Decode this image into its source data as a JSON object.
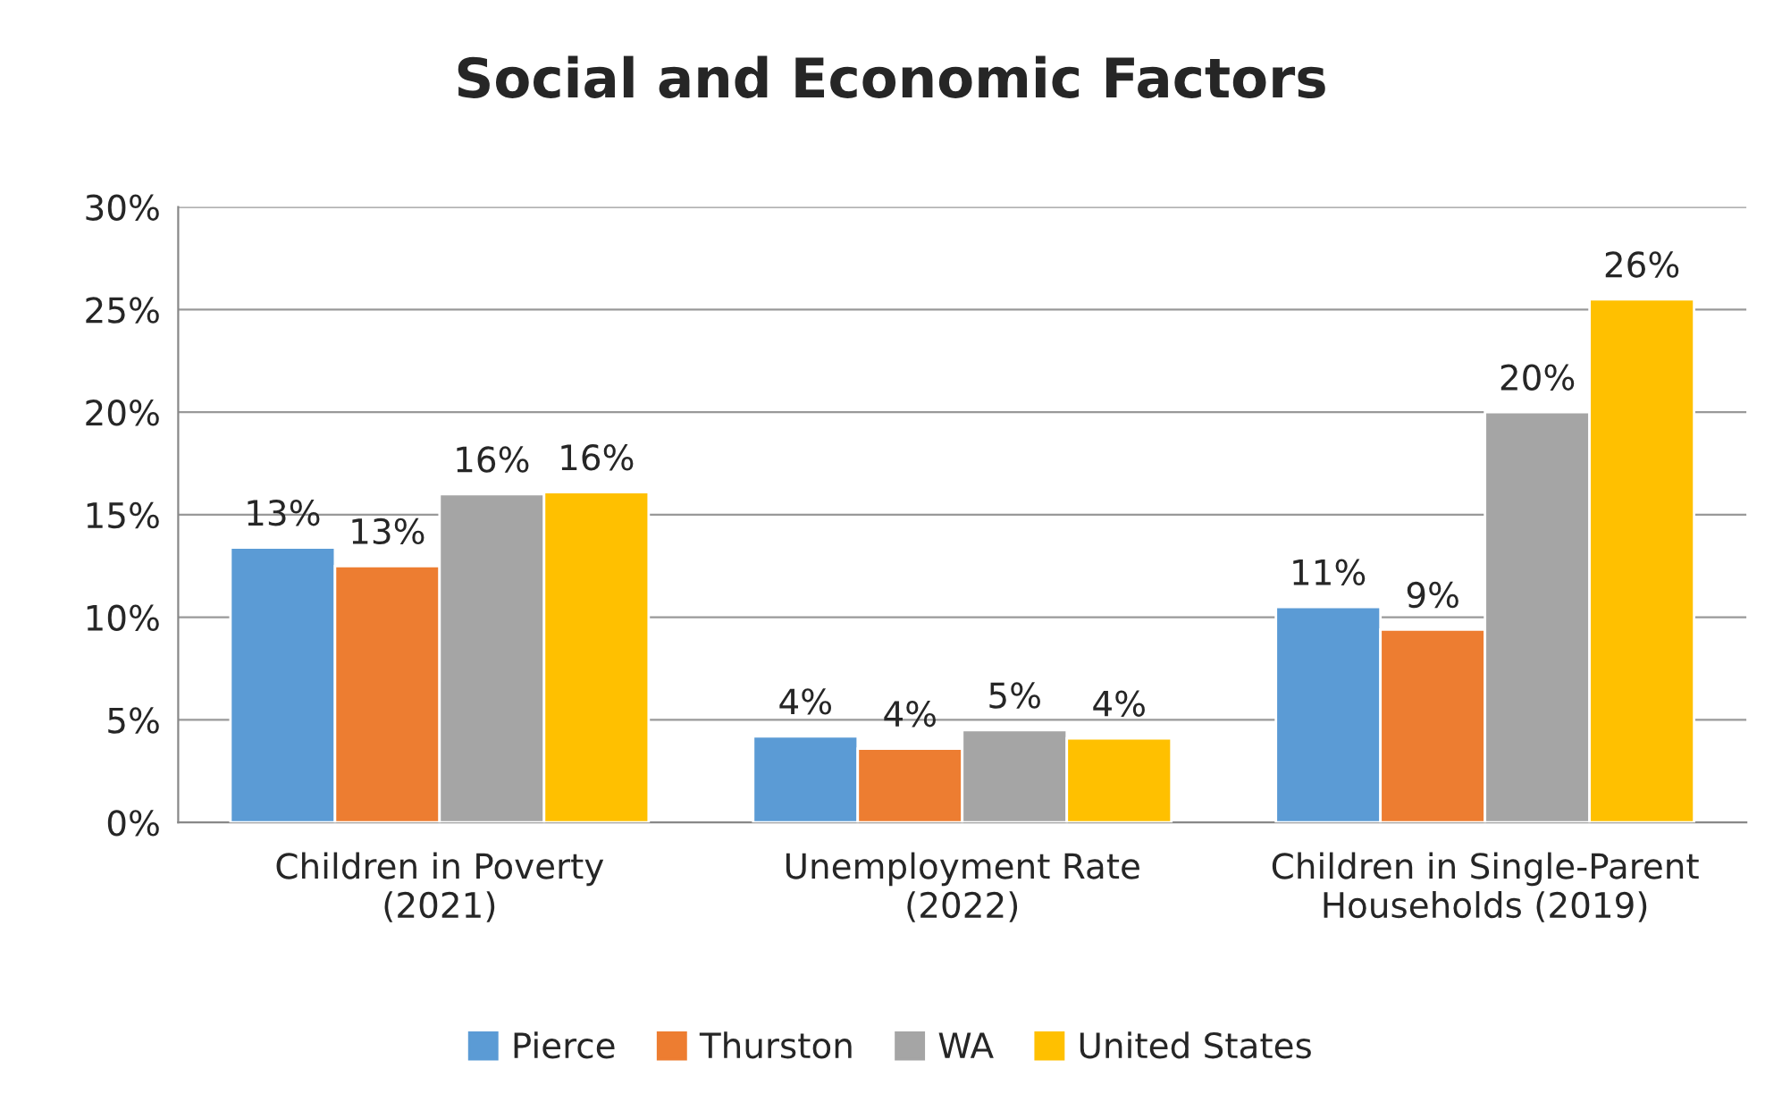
{
  "chart_data": {
    "type": "bar",
    "title": "Social and Economic Factors",
    "categories": [
      "Children in Poverty\n(2021)",
      "Unemployment Rate\n(2022)",
      "Children in Single-Parent\nHouseholds (2019)"
    ],
    "series": [
      {
        "name": "Pierce",
        "color": "#5b9bd5",
        "values": [
          13.4,
          4.2,
          10.5
        ],
        "value_labels": [
          "13%",
          "4%",
          "11%"
        ]
      },
      {
        "name": "Thurston",
        "color": "#ed7d31",
        "values": [
          12.5,
          3.6,
          9.4
        ],
        "value_labels": [
          "13%",
          "4%",
          "9%"
        ]
      },
      {
        "name": "WA",
        "color": "#a5a5a5",
        "values": [
          16.0,
          4.5,
          20.0
        ],
        "value_labels": [
          "16%",
          "5%",
          "20%"
        ]
      },
      {
        "name": "United States",
        "color": "#ffc000",
        "values": [
          16.1,
          4.1,
          25.5
        ],
        "value_labels": [
          "16%",
          "4%",
          "26%"
        ]
      }
    ],
    "ylim": [
      0,
      30
    ],
    "yticks": [
      {
        "value": 0,
        "label": "0%"
      },
      {
        "value": 5,
        "label": "5%"
      },
      {
        "value": 10,
        "label": "10%"
      },
      {
        "value": 15,
        "label": "15%"
      },
      {
        "value": 20,
        "label": "20%"
      },
      {
        "value": 25,
        "label": "25%"
      },
      {
        "value": 30,
        "label": "30%"
      }
    ],
    "grid": "y",
    "legend": "bottom"
  }
}
